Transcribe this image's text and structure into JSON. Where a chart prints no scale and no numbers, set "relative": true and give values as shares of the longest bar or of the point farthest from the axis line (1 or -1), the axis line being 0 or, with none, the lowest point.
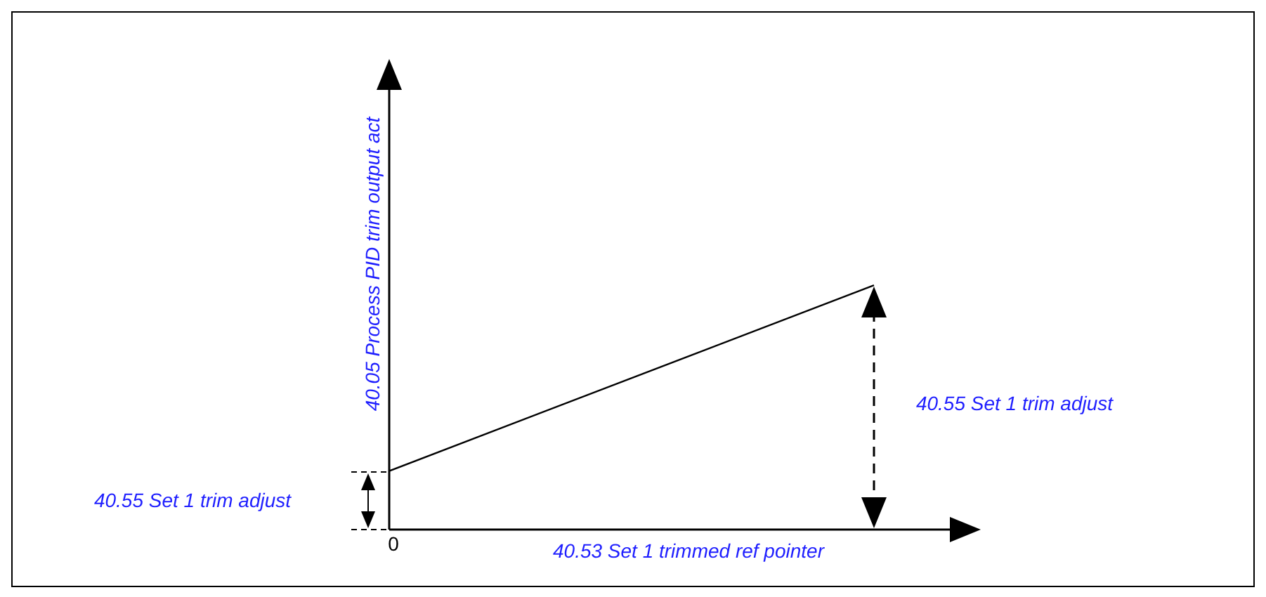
{
  "chart_data": {
    "type": "line",
    "relative": true,
    "categories": [
      null,
      null
    ],
    "series": [
      {
        "color": "#000000",
        "values": [
          0.24,
          1
        ]
      }
    ],
    "xlabel": "40.53 Set 1 trimmed ref pointer",
    "ylabel": "40.05 Process PID trim output act",
    "annotations": [
      "0",
      "40.55 Set 1 trim adjust",
      "40.55 Set 1 trim adjust"
    ],
    "marker": "none"
  }
}
